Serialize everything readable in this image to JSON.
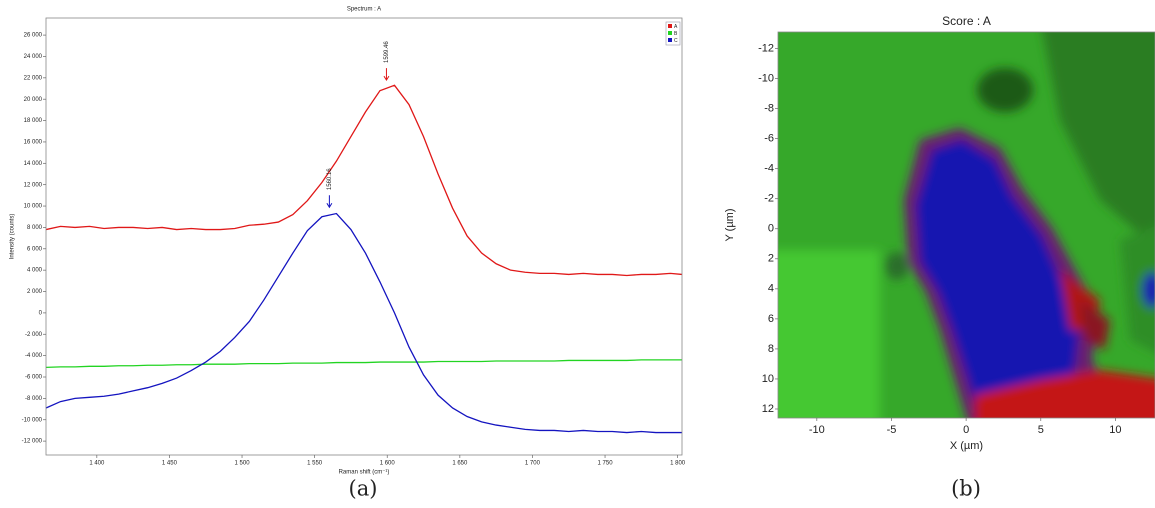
{
  "chart_data": [
    {
      "type": "line",
      "title": "Spectrum : A",
      "x_label": "Raman shift (cm⁻¹)",
      "y_label": "Intensity (counts)",
      "caption": "(a)",
      "x": [
        1365,
        1375,
        1385,
        1395,
        1405,
        1415,
        1425,
        1435,
        1445,
        1455,
        1465,
        1475,
        1485,
        1495,
        1505,
        1515,
        1525,
        1535,
        1545,
        1555,
        1565,
        1575,
        1585,
        1595,
        1605,
        1615,
        1625,
        1635,
        1645,
        1655,
        1665,
        1675,
        1685,
        1695,
        1705,
        1715,
        1725,
        1735,
        1745,
        1755,
        1765,
        1775,
        1785,
        1795,
        1803
      ],
      "series": [
        {
          "name": "A",
          "color": "#e01818",
          "values": [
            7800,
            8100,
            8000,
            8100,
            7900,
            8000,
            8000,
            7900,
            8000,
            7800,
            7900,
            7800,
            7800,
            7900,
            8200,
            8300,
            8500,
            9200,
            10500,
            12200,
            14200,
            16500,
            18800,
            20800,
            21300,
            19500,
            16500,
            13000,
            9800,
            7200,
            5600,
            4600,
            4000,
            3800,
            3700,
            3700,
            3600,
            3700,
            3600,
            3600,
            3500,
            3600,
            3600,
            3700,
            3600
          ]
        },
        {
          "name": "B",
          "color": "#22d422",
          "values": [
            -5100,
            -5050,
            -5050,
            -5000,
            -5000,
            -4950,
            -4950,
            -4900,
            -4900,
            -4850,
            -4850,
            -4800,
            -4800,
            -4800,
            -4750,
            -4750,
            -4750,
            -4700,
            -4700,
            -4700,
            -4650,
            -4650,
            -4650,
            -4600,
            -4600,
            -4600,
            -4600,
            -4550,
            -4550,
            -4550,
            -4550,
            -4500,
            -4500,
            -4500,
            -4500,
            -4500,
            -4450,
            -4450,
            -4450,
            -4450,
            -4450,
            -4400,
            -4400,
            -4400,
            -4400
          ]
        },
        {
          "name": "C",
          "color": "#1414c0",
          "values": [
            -8900,
            -8300,
            -8000,
            -7900,
            -7800,
            -7600,
            -7300,
            -7000,
            -6600,
            -6100,
            -5400,
            -4600,
            -3600,
            -2300,
            -800,
            1200,
            3400,
            5600,
            7700,
            9000,
            9300,
            7800,
            5600,
            2900,
            0,
            -3200,
            -5800,
            -7700,
            -8900,
            -9700,
            -10200,
            -10500,
            -10700,
            -10900,
            -11000,
            -11000,
            -11100,
            -11000,
            -11100,
            -11100,
            -11200,
            -11100,
            -11200,
            -11200,
            -11200
          ]
        }
      ],
      "annotations": [
        {
          "x": 1599.46,
          "y": 21600,
          "color": "#e01818"
        },
        {
          "x": 1560.16,
          "y": 9700,
          "color": "#1414c0"
        }
      ],
      "xlim": [
        1365,
        1803
      ],
      "ylim": [
        -13300,
        27600
      ],
      "xticks": [
        {
          "value": 1400,
          "label": "1 400"
        },
        {
          "value": 1450,
          "label": "1 450"
        },
        {
          "value": 1500,
          "label": "1 500"
        },
        {
          "value": 1550,
          "label": "1 550"
        },
        {
          "value": 1600,
          "label": "1 600"
        },
        {
          "value": 1650,
          "label": "1 650"
        },
        {
          "value": 1700,
          "label": "1 700"
        },
        {
          "value": 1750,
          "label": "1 750"
        },
        {
          "value": 1800,
          "label": "1 800"
        }
      ],
      "yticks": [
        {
          "value": -12000,
          "label": "-12 000"
        },
        {
          "value": -10000,
          "label": "-10 000"
        },
        {
          "value": -8000,
          "label": "-8 000"
        },
        {
          "value": -6000,
          "label": "-6 000"
        },
        {
          "value": -4000,
          "label": "-4 000"
        },
        {
          "value": -2000,
          "label": "-2 000"
        },
        0,
        {
          "value": 2000,
          "label": "2 000"
        },
        {
          "value": 4000,
          "label": "4 000"
        },
        {
          "value": 6000,
          "label": "6 000"
        },
        {
          "value": 8000,
          "label": "8 000"
        },
        {
          "value": 10000,
          "label": "10 000"
        },
        {
          "value": 12000,
          "label": "12 000"
        },
        {
          "value": 14000,
          "label": "14 000"
        },
        {
          "value": 16000,
          "label": "16 000"
        },
        {
          "value": 18000,
          "label": "18 000"
        },
        {
          "value": 20000,
          "label": "20 000"
        },
        {
          "value": 22000,
          "label": "22 000"
        },
        {
          "value": 24000,
          "label": "24 000"
        },
        {
          "value": 26000,
          "label": "26 000"
        }
      ],
      "legend": "upper right",
      "grid": false
    },
    {
      "type": "image",
      "title": "Score : A",
      "x_label": "X (µm)",
      "y_label": "Y (µm)",
      "caption": "(b)",
      "xlim": [
        -12.6,
        12.65
      ],
      "ylim": [
        12.6,
        -13.1
      ],
      "xticks": [
        -10,
        -5,
        0,
        5,
        10
      ],
      "yticks": [
        -12,
        -10,
        -8,
        -6,
        -4,
        -2,
        0,
        2,
        4,
        6,
        8,
        10,
        12
      ]
    }
  ]
}
